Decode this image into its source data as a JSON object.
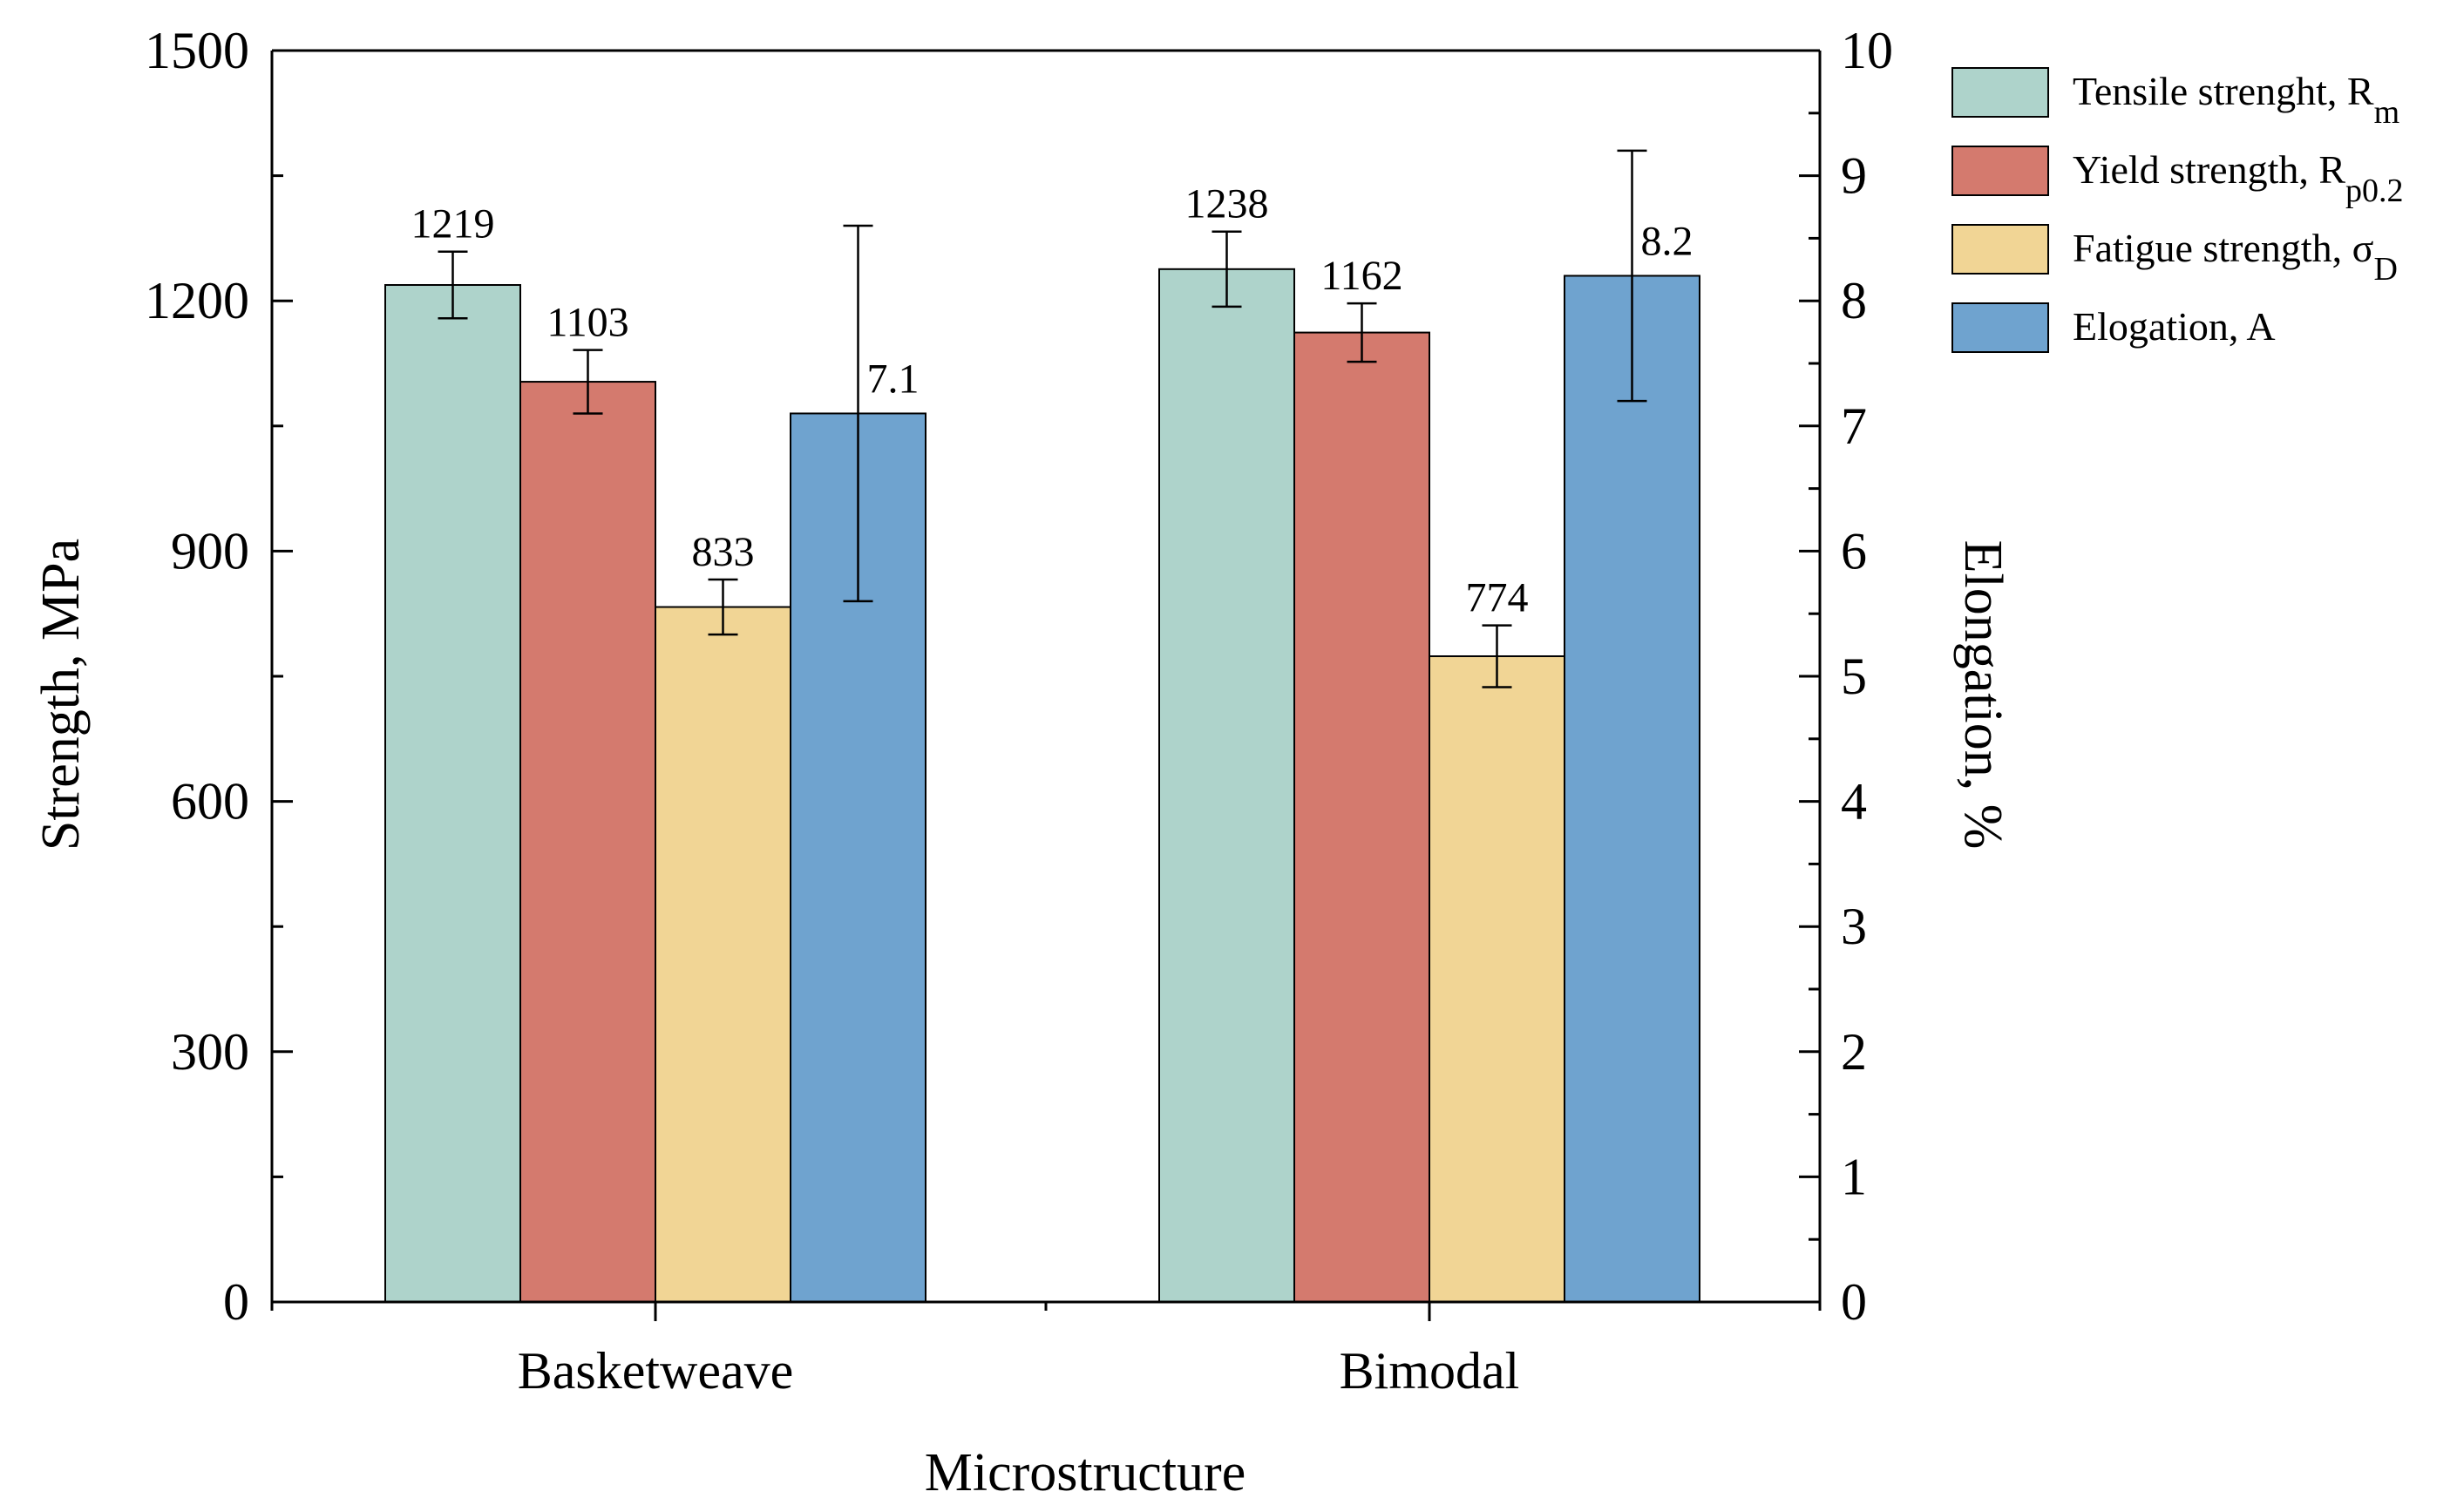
{
  "chart_data": {
    "type": "bar",
    "title": "",
    "categories": [
      "Basketweave",
      "Bimodal"
    ],
    "xlabel": "Microstructure",
    "ylabel": "Strength, MPa",
    "y2label": "Elongation, %",
    "ylim": [
      0,
      1500
    ],
    "y2lim": [
      0,
      10
    ],
    "yticks": [
      "0",
      "300",
      "600",
      "900",
      "1200",
      "1500"
    ],
    "y2ticks": [
      "0",
      "1",
      "2",
      "3",
      "4",
      "5",
      "6",
      "7",
      "8",
      "9",
      "10"
    ],
    "grid": false,
    "legend_position": "top-right (outside plot)",
    "series": [
      {
        "name": "Tensile strenght, R",
        "subscript": "m",
        "axis": "left",
        "color": "#aed3cb",
        "values": [
          1219,
          1238
        ],
        "errors": [
          40,
          45
        ],
        "labels": [
          "1219",
          "1238"
        ]
      },
      {
        "name": "Yield strength, R",
        "subscript": "p0.2",
        "axis": "left",
        "color": "#d47a6e",
        "values": [
          1103,
          1162
        ],
        "errors": [
          38,
          35
        ],
        "labels": [
          "1103",
          "1162"
        ]
      },
      {
        "name": "Fatigue strength, σ",
        "subscript": "D",
        "axis": "left",
        "color": "#f1d595",
        "values": [
          833,
          774
        ],
        "errors": [
          33,
          37
        ],
        "labels": [
          "833",
          "774"
        ]
      },
      {
        "name": "Elogation, A",
        "subscript": "",
        "axis": "right",
        "color": "#6fa3cf",
        "values": [
          7.1,
          8.2
        ],
        "errors": [
          1.5,
          1.0
        ],
        "labels": [
          "7.1",
          "8.2"
        ]
      }
    ]
  }
}
